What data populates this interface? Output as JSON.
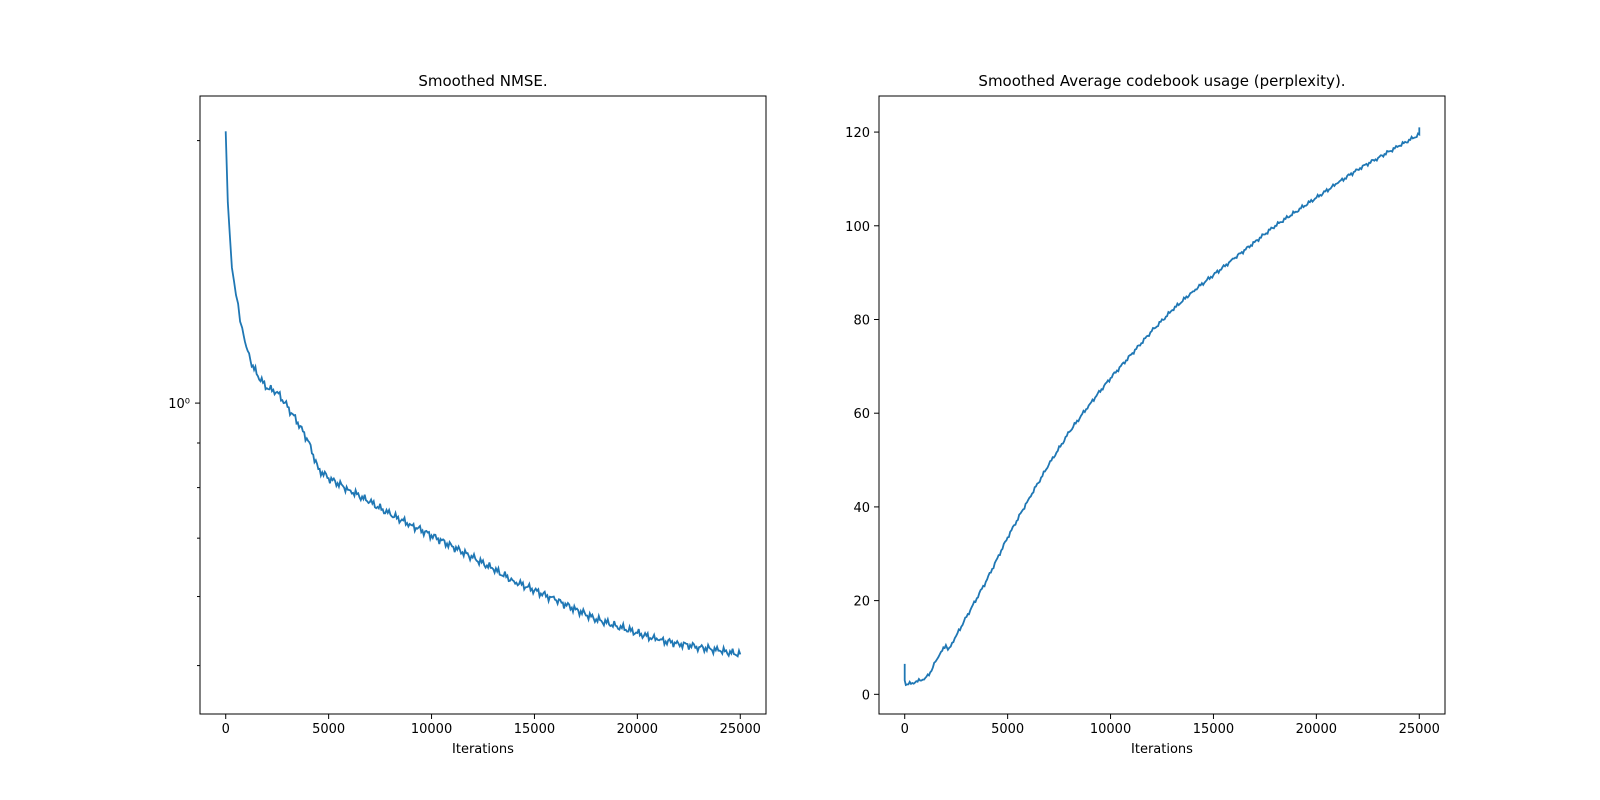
{
  "chart_data": [
    {
      "type": "line",
      "title": "Smoothed NMSE.",
      "xlabel": "Iterations",
      "ylabel": "",
      "yscale": "log",
      "xlim": [
        -1250,
        26250
      ],
      "ylim": [
        0.44,
        2.25
      ],
      "x_ticks": [
        0,
        5000,
        10000,
        15000,
        20000,
        25000
      ],
      "y_major_ticks": [
        {
          "value": 1.0,
          "label": "10⁰"
        }
      ],
      "y_minor_ticks": [
        0.5,
        0.6,
        0.7,
        0.8,
        0.9,
        2.0
      ],
      "grid": false,
      "color": "#1f77b4",
      "series": [
        {
          "x": [
            0,
            100,
            200,
            300,
            400,
            500,
            600,
            700,
            800,
            1000,
            1200,
            1500,
            2000,
            2500,
            3000,
            3500,
            4000,
            4500,
            5000,
            6000,
            7000,
            8000,
            9000,
            10000,
            11000,
            12000,
            13000,
            14000,
            15000,
            16000,
            17000,
            18000,
            19000,
            20000,
            21000,
            22000,
            23000,
            24000,
            25000
          ],
          "y": [
            2.05,
            1.7,
            1.56,
            1.43,
            1.38,
            1.33,
            1.3,
            1.24,
            1.22,
            1.16,
            1.12,
            1.08,
            1.04,
            1.03,
            0.99,
            0.95,
            0.905,
            0.84,
            0.82,
            0.795,
            0.77,
            0.745,
            0.725,
            0.705,
            0.685,
            0.665,
            0.645,
            0.625,
            0.61,
            0.595,
            0.58,
            0.565,
            0.555,
            0.545,
            0.535,
            0.53,
            0.525,
            0.52,
            0.515
          ]
        }
      ]
    },
    {
      "type": "line",
      "title": "Smoothed Average codebook usage (perplexity).",
      "xlabel": "Iterations",
      "ylabel": "",
      "yscale": "linear",
      "xlim": [
        -1250,
        26250
      ],
      "ylim": [
        -4.2,
        127.7
      ],
      "x_ticks": [
        0,
        5000,
        10000,
        15000,
        20000,
        25000
      ],
      "y_ticks": [
        0,
        20,
        40,
        60,
        80,
        100,
        120
      ],
      "grid": false,
      "color": "#1f77b4",
      "series": [
        {
          "x": [
            0,
            0,
            50,
            500,
            1000,
            1300,
            1500,
            1700,
            2000,
            2100,
            2500,
            3000,
            3500,
            4000,
            4500,
            5000,
            6000,
            7000,
            8000,
            9000,
            10000,
            11000,
            12000,
            13000,
            14000,
            15000,
            16000,
            17000,
            18000,
            19000,
            20000,
            21000,
            22000,
            23000,
            24000,
            25000,
            25000
          ],
          "y": [
            6.5,
            3.0,
            2.0,
            2.5,
            3.5,
            5.0,
            7.0,
            8.5,
            10.5,
            9.5,
            12.5,
            16.5,
            20.5,
            24.5,
            29.0,
            33.5,
            41.5,
            49.0,
            56.0,
            62.0,
            67.5,
            72.5,
            77.5,
            82.0,
            86.0,
            89.5,
            93.0,
            96.5,
            100.0,
            103.0,
            106.0,
            109.0,
            112.0,
            114.5,
            117.0,
            119.5,
            121.0
          ]
        }
      ]
    }
  ]
}
